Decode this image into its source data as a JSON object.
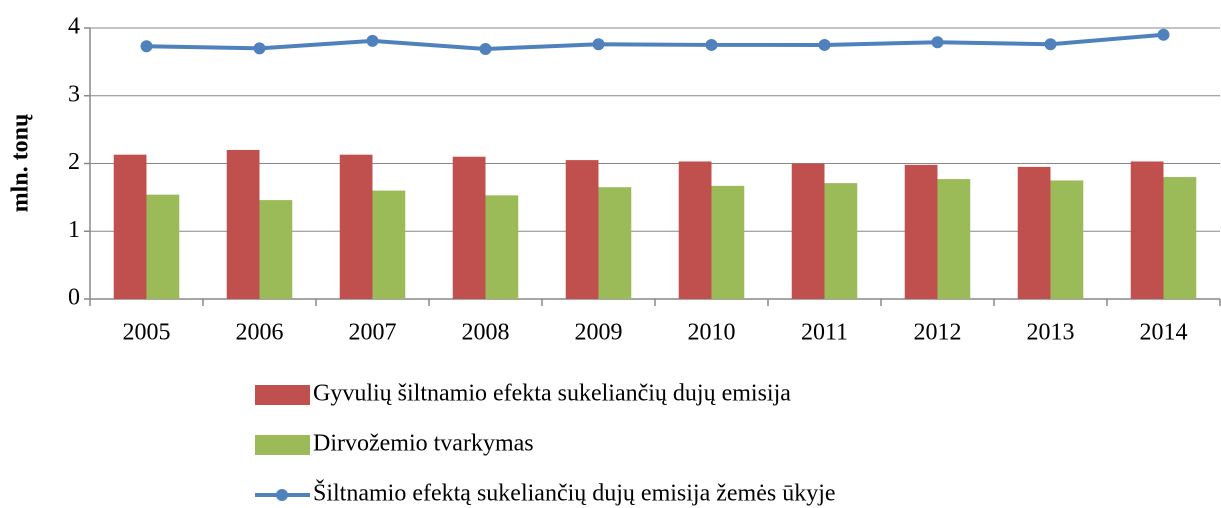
{
  "chart_data": {
    "type": "bar-line",
    "y_label": "mln. tonų",
    "categories": [
      "2005",
      "2006",
      "2007",
      "2008",
      "2009",
      "2010",
      "2011",
      "2012",
      "2013",
      "2014"
    ],
    "series": [
      {
        "name": "Gyvulių šiltnamio efekta sukeliančių dujų emisija",
        "type": "bar",
        "color": "#c0504d",
        "values": [
          2.13,
          2.2,
          2.13,
          2.1,
          2.05,
          2.03,
          2.0,
          1.98,
          1.95,
          2.03
        ]
      },
      {
        "name": "Dirvožemio tvarkymas",
        "type": "bar",
        "color": "#9bbb59",
        "values": [
          1.54,
          1.46,
          1.6,
          1.53,
          1.65,
          1.67,
          1.71,
          1.77,
          1.75,
          1.8
        ]
      },
      {
        "name": "Šiltnamio efektą sukeliančių dujų emisija žemės ūkyje",
        "type": "line",
        "color": "#4f81bd",
        "values": [
          3.73,
          3.7,
          3.81,
          3.69,
          3.76,
          3.75,
          3.75,
          3.79,
          3.76,
          3.9
        ]
      }
    ],
    "ylim": [
      0,
      4
    ],
    "yticks": [
      0,
      1,
      2,
      3,
      4
    ],
    "grid": true
  }
}
